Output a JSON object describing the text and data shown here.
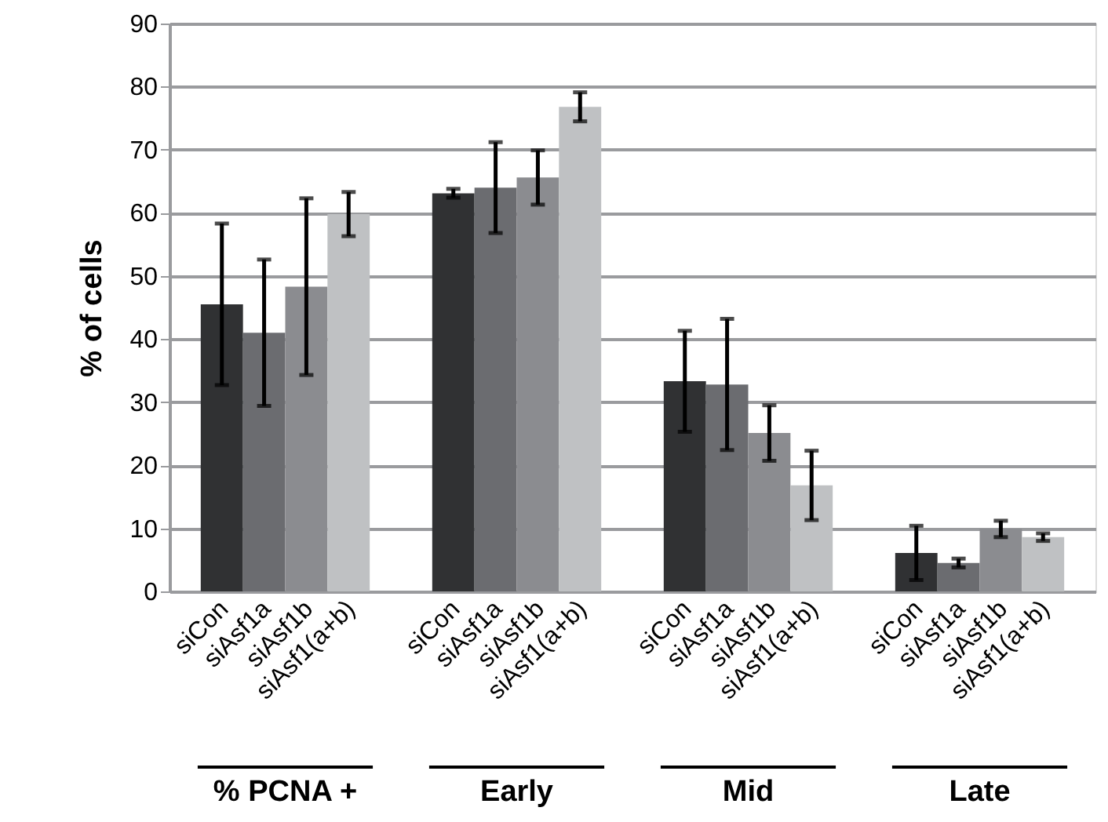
{
  "chart_data": {
    "type": "bar",
    "ylabel": "% of cells",
    "categories": [
      "% PCNA +",
      "Early",
      "Mid",
      "Late"
    ],
    "series": [
      {
        "name": "siCon",
        "color": "#303133",
        "values": [
          45.5,
          63.1,
          33.3,
          6.1
        ],
        "errors": [
          12.8,
          0.7,
          8.0,
          4.3
        ]
      },
      {
        "name": "siAsf1a",
        "color": "#6b6c70",
        "values": [
          41.0,
          64.0,
          32.8,
          4.5
        ],
        "errors": [
          11.6,
          7.2,
          10.4,
          0.7
        ]
      },
      {
        "name": "siAsf1b",
        "color": "#8b8c90",
        "values": [
          48.3,
          65.6,
          25.1,
          9.9
        ],
        "errors": [
          14.0,
          4.3,
          4.4,
          1.3
        ]
      },
      {
        "name": "siAsf1(a+b)",
        "color": "#bfc1c3",
        "values": [
          59.8,
          76.8,
          16.8,
          8.6
        ],
        "errors": [
          3.5,
          2.3,
          5.5,
          0.6
        ]
      }
    ],
    "ylim": [
      0,
      90
    ],
    "yticks": [
      0,
      10,
      20,
      30,
      40,
      50,
      60,
      70,
      80,
      90
    ],
    "grid": "y"
  }
}
